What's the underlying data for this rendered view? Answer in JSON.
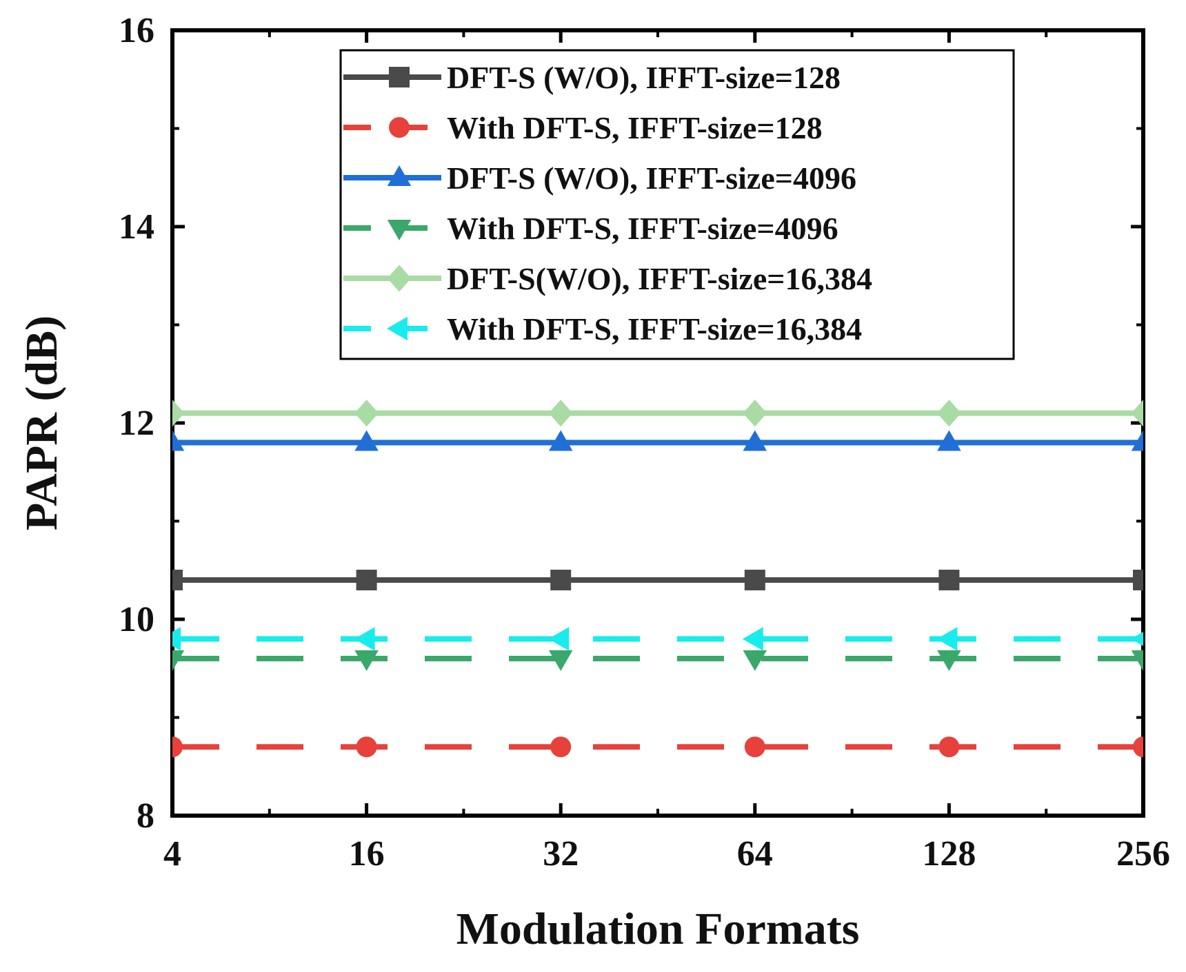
{
  "chart_data": {
    "type": "line",
    "title": "",
    "xlabel": "Modulation Formats",
    "ylabel": "PAPR (dB)",
    "categories": [
      "4",
      "16",
      "32",
      "64",
      "128",
      "256"
    ],
    "ylim": [
      8,
      16
    ],
    "yticks": [
      "8",
      "10",
      "12",
      "14",
      "16"
    ],
    "grid": false,
    "legend_position": "top-right",
    "series": [
      {
        "name": "DFT-S (W/O), IFFT-size=128",
        "values": [
          10.4,
          10.4,
          10.4,
          10.4,
          10.4,
          10.4
        ],
        "color": "#4a4a4a",
        "marker": "square",
        "dash": "solid"
      },
      {
        "name": "With DFT-S, IFFT-size=128",
        "values": [
          8.7,
          8.7,
          8.7,
          8.7,
          8.7,
          8.7
        ],
        "color": "#e8403a",
        "marker": "circle",
        "dash": "dashed"
      },
      {
        "name": "DFT-S (W/O), IFFT-size=4096",
        "values": [
          11.8,
          11.8,
          11.8,
          11.8,
          11.8,
          11.8
        ],
        "color": "#1f6fd6",
        "marker": "triangle-up",
        "dash": "solid"
      },
      {
        "name": "With DFT-S, IFFT-size=4096",
        "values": [
          9.6,
          9.6,
          9.6,
          9.6,
          9.6,
          9.6
        ],
        "color": "#3aa86a",
        "marker": "triangle-down",
        "dash": "dashed"
      },
      {
        "name": "DFT-S(W/O), IFFT-size=16,384",
        "values": [
          12.1,
          12.1,
          12.1,
          12.1,
          12.1,
          12.1
        ],
        "color": "#a9dba4",
        "marker": "diamond",
        "dash": "solid"
      },
      {
        "name": "With DFT-S, IFFT-size=16,384",
        "values": [
          9.8,
          9.8,
          9.8,
          9.8,
          9.8,
          9.8
        ],
        "color": "#18ecec",
        "marker": "triangle-left",
        "dash": "dashed"
      }
    ]
  }
}
